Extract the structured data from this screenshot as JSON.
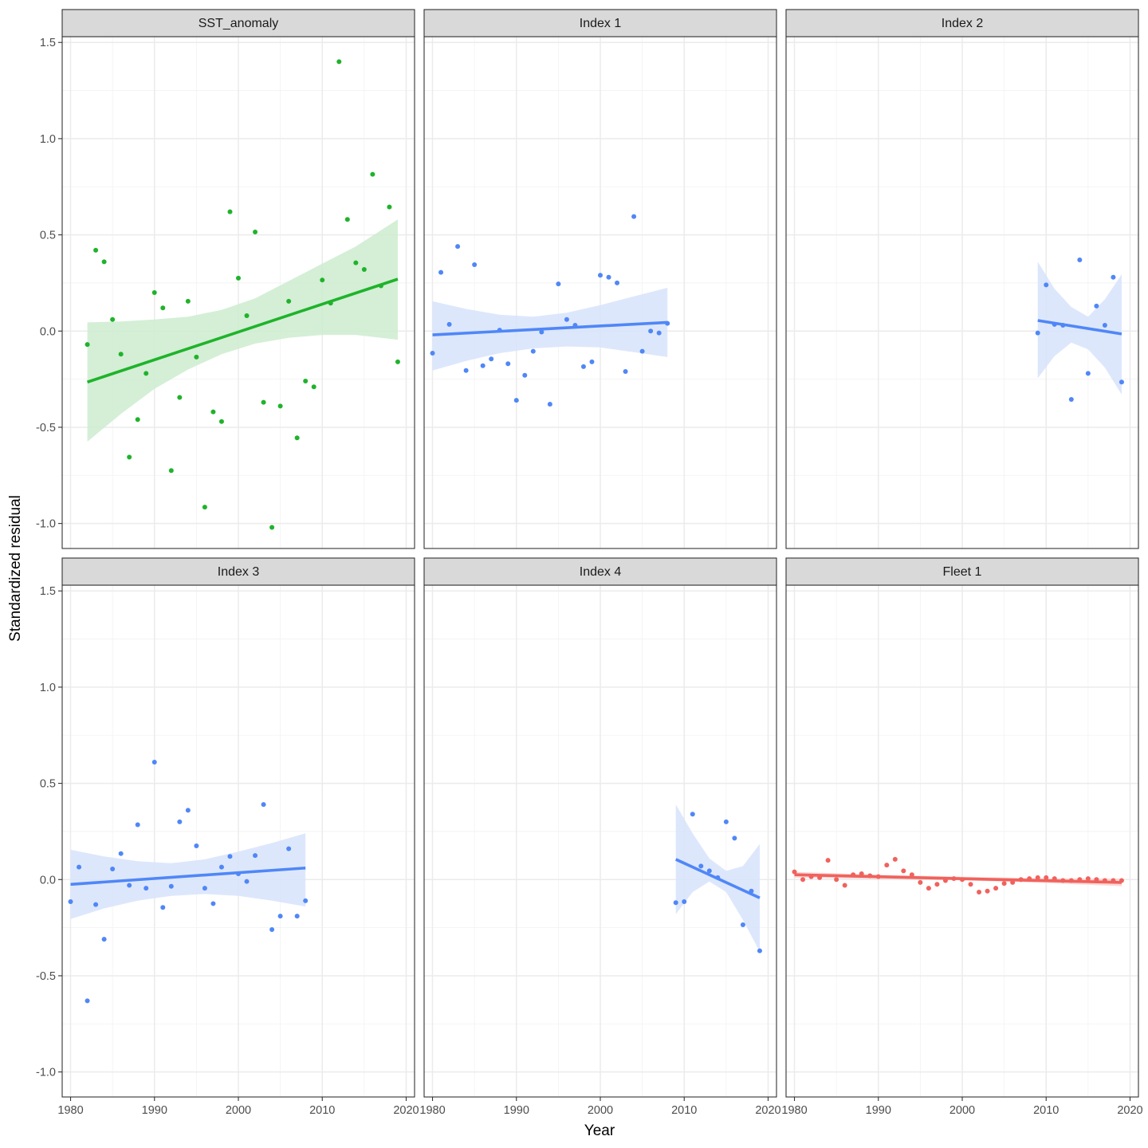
{
  "chart_data": {
    "type": "scatter",
    "layout": "facet-grid 2x3, shared axes",
    "xlabel": "Year",
    "ylabel": "Standardized residual",
    "xlim": [
      1979,
      2021
    ],
    "ylim": [
      -1.13,
      1.53
    ],
    "xticks": [
      1980,
      1990,
      2000,
      2010,
      2020
    ],
    "yticks": [
      -1.0,
      -0.5,
      0.0,
      0.5,
      1.0,
      1.5
    ],
    "ytick_labels": [
      "-1.0",
      "-0.5",
      "0.0",
      "0.5",
      "1.0",
      "1.5"
    ],
    "grid": true,
    "overlay": "linear trend line with confidence ribbon",
    "panels": [
      {
        "title": "SST_anomaly",
        "color": "#1fb32b",
        "ribbon_color": "#cdeccf",
        "trend": {
          "x": [
            1982,
            2019
          ],
          "y": [
            -0.265,
            0.27
          ]
        },
        "ribbon": {
          "x": [
            1982,
            1986,
            1990,
            1994,
            1998,
            2002,
            2006,
            2010,
            2014,
            2019
          ],
          "lower": [
            -0.575,
            -0.43,
            -0.3,
            -0.2,
            -0.12,
            -0.065,
            -0.035,
            -0.02,
            -0.02,
            -0.045
          ],
          "upper": [
            0.045,
            0.05,
            0.06,
            0.075,
            0.11,
            0.17,
            0.26,
            0.35,
            0.44,
            0.58
          ]
        },
        "points": {
          "x": [
            1982,
            1983,
            1984,
            1985,
            1986,
            1987,
            1988,
            1989,
            1990,
            1991,
            1992,
            1993,
            1994,
            1995,
            1996,
            1997,
            1998,
            1999,
            2000,
            2001,
            2002,
            2003,
            2004,
            2005,
            2006,
            2007,
            2008,
            2009,
            2010,
            2011,
            2012,
            2013,
            2014,
            2015,
            2016,
            2017,
            2018,
            2019
          ],
          "y": [
            -0.07,
            0.42,
            0.36,
            0.06,
            -0.12,
            -0.655,
            -0.46,
            -0.22,
            0.2,
            0.12,
            -0.725,
            -0.345,
            0.155,
            -0.135,
            -0.915,
            -0.42,
            -0.47,
            0.62,
            0.275,
            0.08,
            0.515,
            -0.37,
            -1.02,
            -0.39,
            0.155,
            -0.555,
            -0.26,
            -0.29,
            0.265,
            0.145,
            1.4,
            0.58,
            0.355,
            0.32,
            0.815,
            0.235,
            0.645,
            -0.16
          ]
        }
      },
      {
        "title": "Index 1",
        "color": "#4f87f7",
        "ribbon_color": "#d7e3fc",
        "trend": {
          "x": [
            1980,
            2008
          ],
          "y": [
            -0.02,
            0.045
          ]
        },
        "ribbon": {
          "x": [
            1980,
            1984,
            1988,
            1992,
            1996,
            2000,
            2004,
            2008
          ],
          "lower": [
            -0.205,
            -0.155,
            -0.115,
            -0.09,
            -0.08,
            -0.085,
            -0.11,
            -0.135
          ],
          "upper": [
            0.155,
            0.115,
            0.085,
            0.075,
            0.095,
            0.135,
            0.18,
            0.225
          ]
        },
        "points": {
          "x": [
            1980,
            1981,
            1982,
            1983,
            1984,
            1985,
            1986,
            1987,
            1988,
            1989,
            1990,
            1991,
            1992,
            1993,
            1994,
            1995,
            1996,
            1997,
            1998,
            1999,
            2000,
            2001,
            2002,
            2003,
            2004,
            2005,
            2006,
            2007,
            2008
          ],
          "y": [
            -0.115,
            0.305,
            0.035,
            0.44,
            -0.205,
            0.345,
            -0.18,
            -0.145,
            0.005,
            -0.17,
            -0.36,
            -0.23,
            -0.105,
            -0.005,
            -0.38,
            0.245,
            0.06,
            0.03,
            -0.185,
            -0.16,
            0.29,
            0.28,
            0.25,
            -0.21,
            0.595,
            -0.105,
            0.0,
            -0.01,
            0.04
          ]
        }
      },
      {
        "title": "Index 2",
        "color": "#4f87f7",
        "ribbon_color": "#d7e3fc",
        "trend": {
          "x": [
            2009,
            2019
          ],
          "y": [
            0.055,
            -0.015
          ]
        },
        "ribbon": {
          "x": [
            2009,
            2011,
            2013,
            2015,
            2017,
            2019
          ],
          "lower": [
            -0.245,
            -0.13,
            -0.06,
            -0.095,
            -0.19,
            -0.33
          ],
          "upper": [
            0.36,
            0.22,
            0.125,
            0.075,
            0.165,
            0.295
          ]
        },
        "points": {
          "x": [
            2009,
            2010,
            2011,
            2012,
            2013,
            2014,
            2015,
            2016,
            2017,
            2018,
            2019
          ],
          "y": [
            -0.01,
            0.24,
            0.035,
            0.03,
            -0.355,
            0.37,
            -0.22,
            0.13,
            0.03,
            0.28,
            -0.265
          ]
        }
      },
      {
        "title": "Index 3",
        "color": "#4f87f7",
        "ribbon_color": "#d7e3fc",
        "trend": {
          "x": [
            1980,
            2008
          ],
          "y": [
            -0.025,
            0.06
          ]
        },
        "ribbon": {
          "x": [
            1980,
            1984,
            1988,
            1992,
            1996,
            2000,
            2004,
            2008
          ],
          "lower": [
            -0.205,
            -0.15,
            -0.11,
            -0.085,
            -0.075,
            -0.085,
            -0.11,
            -0.14
          ],
          "upper": [
            0.155,
            0.12,
            0.095,
            0.085,
            0.105,
            0.145,
            0.19,
            0.24
          ]
        },
        "points": {
          "x": [
            1980,
            1981,
            1982,
            1983,
            1984,
            1985,
            1986,
            1987,
            1988,
            1989,
            1990,
            1991,
            1992,
            1993,
            1994,
            1995,
            1996,
            1997,
            1998,
            1999,
            2000,
            2001,
            2002,
            2003,
            2004,
            2005,
            2006,
            2007,
            2008
          ],
          "y": [
            -0.115,
            0.065,
            -0.63,
            -0.13,
            -0.31,
            0.055,
            0.135,
            -0.03,
            0.285,
            -0.045,
            0.61,
            -0.145,
            -0.035,
            0.3,
            0.36,
            0.175,
            -0.045,
            -0.125,
            0.065,
            0.12,
            0.03,
            -0.01,
            0.125,
            0.39,
            -0.26,
            -0.19,
            0.16,
            -0.19,
            -0.11
          ]
        }
      },
      {
        "title": "Index 4",
        "color": "#4f87f7",
        "ribbon_color": "#d7e3fc",
        "trend": {
          "x": [
            2009,
            2019
          ],
          "y": [
            0.105,
            -0.095
          ]
        },
        "ribbon": {
          "x": [
            2009,
            2011,
            2013,
            2015,
            2017,
            2019
          ],
          "lower": [
            -0.18,
            -0.065,
            -0.01,
            -0.065,
            -0.21,
            -0.375
          ],
          "upper": [
            0.39,
            0.24,
            0.11,
            0.045,
            0.07,
            0.185
          ]
        },
        "points": {
          "x": [
            2009,
            2010,
            2011,
            2012,
            2013,
            2014,
            2015,
            2016,
            2017,
            2018,
            2019
          ],
          "y": [
            -0.12,
            -0.115,
            0.34,
            0.07,
            0.045,
            0.01,
            0.3,
            0.215,
            -0.235,
            -0.06,
            -0.37
          ]
        }
      },
      {
        "title": "Fleet 1",
        "color": "#f0625d",
        "ribbon_color": "#fbd3d1",
        "trend": {
          "x": [
            1980,
            2019
          ],
          "y": [
            0.025,
            -0.015
          ]
        },
        "ribbon": {
          "x": [
            1980,
            1990,
            2000,
            2010,
            2019
          ],
          "lower": [
            0.01,
            0.003,
            -0.004,
            -0.018,
            -0.035
          ],
          "upper": [
            0.04,
            0.025,
            0.015,
            0.007,
            0.005
          ]
        },
        "points": {
          "x": [
            1980,
            1981,
            1982,
            1983,
            1984,
            1985,
            1986,
            1987,
            1988,
            1989,
            1990,
            1991,
            1992,
            1993,
            1994,
            1995,
            1996,
            1997,
            1998,
            1999,
            2000,
            2001,
            2002,
            2003,
            2004,
            2005,
            2006,
            2007,
            2008,
            2009,
            2010,
            2011,
            2012,
            2013,
            2014,
            2015,
            2016,
            2017,
            2018,
            2019
          ],
          "y": [
            0.04,
            0.0,
            0.015,
            0.01,
            0.1,
            0.0,
            -0.03,
            0.025,
            0.03,
            0.02,
            0.015,
            0.075,
            0.105,
            0.045,
            0.025,
            -0.015,
            -0.045,
            -0.025,
            -0.005,
            0.005,
            0.0,
            -0.025,
            -0.065,
            -0.06,
            -0.045,
            -0.02,
            -0.015,
            0.0,
            0.005,
            0.01,
            0.01,
            0.005,
            -0.005,
            -0.005,
            0.0,
            0.005,
            0.0,
            -0.005,
            -0.005,
            -0.005
          ]
        }
      }
    ]
  }
}
